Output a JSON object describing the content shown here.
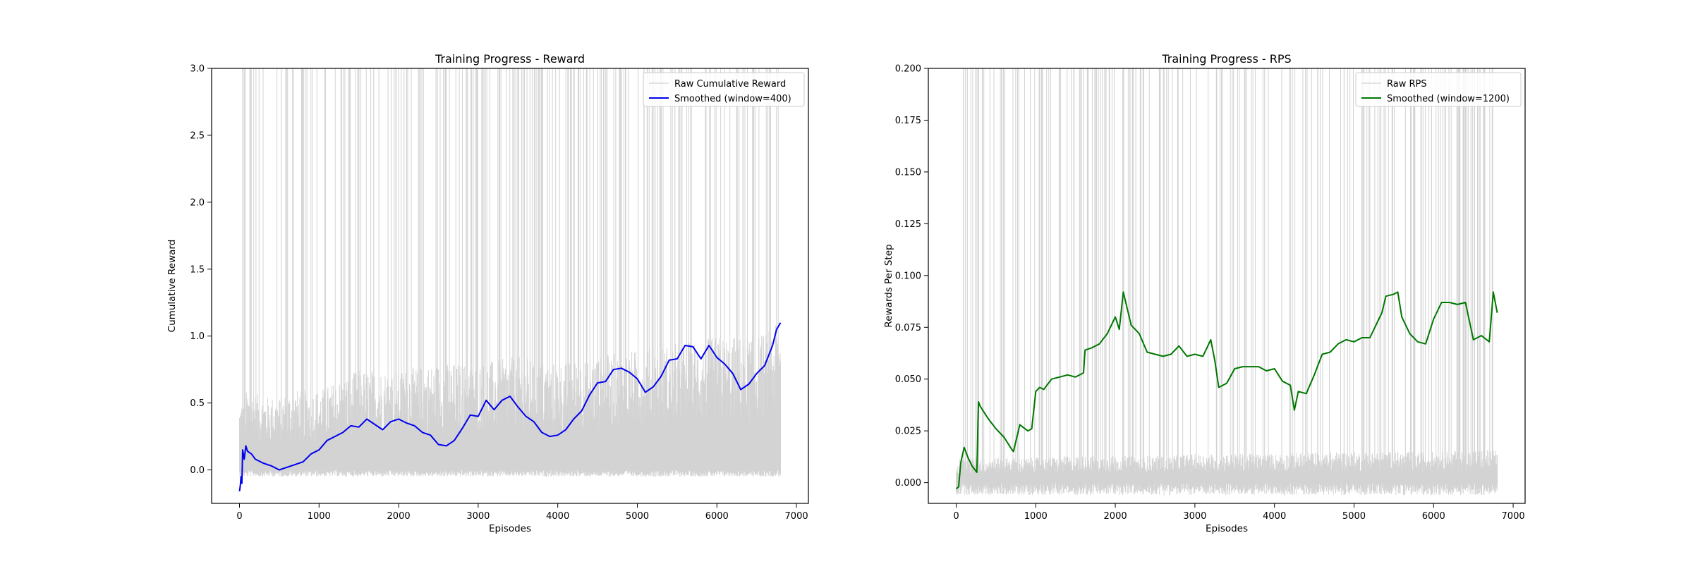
{
  "chart_data": [
    {
      "type": "line",
      "title": "Training Progress - Reward",
      "xlabel": "Episodes",
      "ylabel": "Cumulative Reward",
      "xlim": [
        -350,
        7150
      ],
      "ylim": [
        -0.25,
        3.0
      ],
      "xticks": [
        0,
        1000,
        2000,
        3000,
        4000,
        5000,
        6000,
        7000
      ],
      "xtick_labels": [
        "0",
        "1000",
        "2000",
        "3000",
        "4000",
        "5000",
        "6000",
        "7000"
      ],
      "yticks": [
        0.0,
        0.5,
        1.0,
        1.5,
        2.0,
        2.5,
        3.0
      ],
      "ytick_labels": [
        "0.0",
        "0.5",
        "1.0",
        "1.5",
        "2.0",
        "2.5",
        "3.0"
      ],
      "grid": false,
      "legend_position": "top-right",
      "raw_color": "#d3d3d3",
      "smooth_color": "#0000ee",
      "series": [
        {
          "name": "Raw Cumulative Reward",
          "style": "raw",
          "x": [
            0,
            100,
            300,
            500,
            700,
            1000,
            1500,
            2000,
            2500,
            3000,
            3500,
            4000,
            4500,
            5000,
            5500,
            6000,
            6500,
            6800
          ],
          "y": [
            0.5,
            0.6,
            0.55,
            0.55,
            0.6,
            0.6,
            0.75,
            0.75,
            0.8,
            0.8,
            0.85,
            0.8,
            0.85,
            0.9,
            0.95,
            1.0,
            1.0,
            1.1
          ],
          "floor": -0.05
        },
        {
          "name": "Smoothed (window=400)",
          "style": "smooth",
          "x": [
            0,
            10,
            20,
            30,
            40,
            60,
            80,
            100,
            150,
            200,
            300,
            400,
            500,
            600,
            700,
            800,
            900,
            1000,
            1100,
            1200,
            1300,
            1400,
            1500,
            1600,
            1700,
            1800,
            1900,
            2000,
            2100,
            2200,
            2300,
            2400,
            2500,
            2600,
            2700,
            2800,
            2900,
            3000,
            3100,
            3200,
            3300,
            3400,
            3500,
            3600,
            3700,
            3800,
            3900,
            4000,
            4100,
            4200,
            4300,
            4400,
            4500,
            4600,
            4700,
            4800,
            4900,
            5000,
            5100,
            5200,
            5300,
            5400,
            5500,
            5600,
            5700,
            5800,
            5900,
            6000,
            6100,
            6200,
            6300,
            6400,
            6500,
            6600,
            6700,
            6750,
            6800
          ],
          "y": [
            -0.16,
            -0.12,
            -0.05,
            -0.1,
            0.15,
            0.08,
            0.18,
            0.14,
            0.12,
            0.08,
            0.05,
            0.03,
            0.0,
            0.02,
            0.04,
            0.06,
            0.12,
            0.15,
            0.22,
            0.25,
            0.28,
            0.33,
            0.32,
            0.38,
            0.34,
            0.3,
            0.36,
            0.38,
            0.35,
            0.33,
            0.28,
            0.26,
            0.19,
            0.18,
            0.22,
            0.31,
            0.41,
            0.4,
            0.52,
            0.45,
            0.52,
            0.55,
            0.47,
            0.4,
            0.36,
            0.28,
            0.25,
            0.26,
            0.3,
            0.38,
            0.44,
            0.56,
            0.65,
            0.66,
            0.75,
            0.76,
            0.73,
            0.68,
            0.58,
            0.62,
            0.7,
            0.82,
            0.83,
            0.93,
            0.92,
            0.83,
            0.93,
            0.84,
            0.79,
            0.72,
            0.6,
            0.64,
            0.72,
            0.78,
            0.93,
            1.05,
            1.1
          ]
        }
      ]
    },
    {
      "type": "line",
      "title": "Training Progress - RPS",
      "xlabel": "Episodes",
      "ylabel": "Rewards Per Step",
      "xlim": [
        -350,
        7150
      ],
      "ylim": [
        -0.01,
        0.2
      ],
      "xticks": [
        0,
        1000,
        2000,
        3000,
        4000,
        5000,
        6000,
        7000
      ],
      "xtick_labels": [
        "0",
        "1000",
        "2000",
        "3000",
        "4000",
        "5000",
        "6000",
        "7000"
      ],
      "yticks": [
        0.0,
        0.025,
        0.05,
        0.075,
        0.1,
        0.125,
        0.15,
        0.175,
        0.2
      ],
      "ytick_labels": [
        "0.000",
        "0.025",
        "0.050",
        "0.075",
        "0.100",
        "0.125",
        "0.150",
        "0.175",
        "0.200"
      ],
      "grid": false,
      "legend_position": "top-right",
      "raw_color": "#d3d3d3",
      "smooth_color": "#007700",
      "series": [
        {
          "name": "Raw RPS",
          "style": "raw",
          "x": [
            0,
            100,
            300,
            500,
            700,
            1000,
            1500,
            2000,
            2500,
            3000,
            3500,
            4000,
            4500,
            5000,
            5500,
            6000,
            6500,
            6800
          ],
          "y": [
            0.012,
            0.012,
            0.012,
            0.012,
            0.012,
            0.012,
            0.013,
            0.013,
            0.013,
            0.014,
            0.014,
            0.014,
            0.015,
            0.015,
            0.015,
            0.015,
            0.016,
            0.016
          ],
          "floor": -0.006
        },
        {
          "name": "Smoothed (window=1200)",
          "style": "smooth",
          "x": [
            0,
            30,
            60,
            100,
            150,
            200,
            260,
            280,
            300,
            400,
            500,
            600,
            700,
            720,
            800,
            900,
            950,
            1000,
            1050,
            1100,
            1200,
            1300,
            1400,
            1500,
            1600,
            1620,
            1700,
            1800,
            1900,
            2000,
            2050,
            2100,
            2150,
            2200,
            2300,
            2400,
            2500,
            2600,
            2700,
            2800,
            2900,
            3000,
            3100,
            3200,
            3250,
            3300,
            3400,
            3500,
            3600,
            3700,
            3800,
            3900,
            4000,
            4100,
            4200,
            4250,
            4300,
            4400,
            4500,
            4600,
            4700,
            4800,
            4900,
            5000,
            5100,
            5200,
            5300,
            5350,
            5400,
            5500,
            5550,
            5600,
            5700,
            5800,
            5900,
            6000,
            6100,
            6200,
            6300,
            6400,
            6500,
            6600,
            6700,
            6750,
            6800
          ],
          "y": [
            -0.003,
            -0.002,
            0.01,
            0.017,
            0.012,
            0.008,
            0.005,
            0.039,
            0.037,
            0.031,
            0.026,
            0.022,
            0.016,
            0.015,
            0.028,
            0.025,
            0.026,
            0.044,
            0.046,
            0.045,
            0.05,
            0.051,
            0.052,
            0.051,
            0.053,
            0.064,
            0.065,
            0.067,
            0.072,
            0.08,
            0.074,
            0.092,
            0.084,
            0.076,
            0.072,
            0.063,
            0.062,
            0.061,
            0.062,
            0.066,
            0.061,
            0.062,
            0.061,
            0.069,
            0.059,
            0.046,
            0.048,
            0.055,
            0.056,
            0.056,
            0.056,
            0.054,
            0.055,
            0.049,
            0.047,
            0.035,
            0.044,
            0.043,
            0.052,
            0.062,
            0.063,
            0.067,
            0.069,
            0.068,
            0.07,
            0.07,
            0.078,
            0.082,
            0.09,
            0.091,
            0.092,
            0.08,
            0.072,
            0.068,
            0.067,
            0.079,
            0.087,
            0.087,
            0.086,
            0.087,
            0.069,
            0.071,
            0.068,
            0.092,
            0.082
          ]
        }
      ]
    }
  ]
}
